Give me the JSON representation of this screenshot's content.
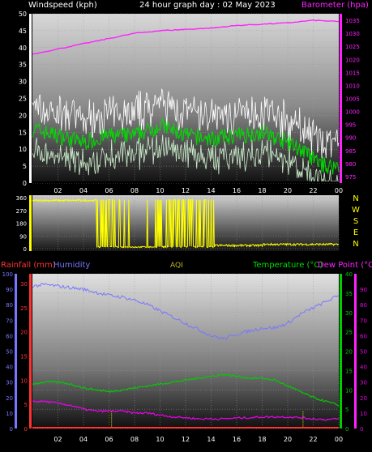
{
  "header": {
    "wind_title": "Windspeed (kph)",
    "graph_title": "24 hour graph day : 02 May 2023",
    "baro_title": "Barometer (hpa)"
  },
  "lower_header": {
    "rain_title": "Rainfall (mm)",
    "humidity_title": "Humidity",
    "aqi_title": "AQI",
    "temp_title": "Temperature (°C)",
    "dew_title": "Dew Point (°C"
  },
  "x_ticks": [
    "02",
    "04",
    "06",
    "08",
    "10",
    "12",
    "14",
    "16",
    "18",
    "20",
    "22",
    "00"
  ],
  "compass": [
    "N",
    "W",
    "S",
    "E",
    "N"
  ],
  "colors": {
    "background": "#000000",
    "wind_gust": "#ffffff",
    "wind_avg": "#00dd00",
    "wind_min": "#cceecc",
    "barometer": "#ff22ff",
    "direction": "#ffff00",
    "humidity": "#7777ff",
    "temperature": "#00cc00",
    "dewpoint": "#ee00ee",
    "rainfall": "#ff3333"
  },
  "chart_data": [
    {
      "type": "line",
      "name": "wind_and_barometer",
      "title": "24 hour graph day : 02 May 2023",
      "x_ticks": [
        "02",
        "04",
        "06",
        "08",
        "10",
        "12",
        "14",
        "16",
        "18",
        "20",
        "22",
        "00"
      ],
      "y_left": {
        "label": "Windspeed (kph)",
        "ticks": [
          0,
          5,
          10,
          15,
          20,
          25,
          30,
          35,
          40,
          45,
          50
        ],
        "range": [
          0,
          50
        ]
      },
      "y_right": {
        "label": "Barometer (hpa)",
        "ticks": [
          975,
          980,
          985,
          990,
          995,
          1000,
          1005,
          1010,
          1015,
          1020,
          1025,
          1030,
          1035
        ],
        "range": [
          972.5,
          1037.5
        ]
      },
      "series": [
        {
          "name": "Windspeed (kph)",
          "x": [
            0,
            2,
            4,
            6,
            8,
            10,
            12,
            14,
            16,
            18,
            20,
            21,
            22,
            23,
            24
          ],
          "values": [
            16,
            14,
            12,
            14,
            14,
            17,
            14,
            13,
            14,
            15,
            12,
            10,
            7,
            5,
            5
          ]
        },
        {
          "name": "Barometer (hpa)",
          "x": [
            0,
            2,
            4,
            6,
            8,
            10,
            12,
            14,
            16,
            18,
            20,
            22,
            24
          ],
          "values": [
            1022,
            1024,
            1026,
            1028,
            1030,
            1031,
            1031.5,
            1032,
            1033,
            1033.5,
            1034,
            1035,
            1034.5
          ]
        }
      ]
    },
    {
      "type": "scatter",
      "name": "wind_direction",
      "y_ticks": [
        0,
        90,
        180,
        270,
        360
      ],
      "y_range": [
        0,
        360
      ],
      "compass": [
        "N",
        "W",
        "S",
        "E",
        "N"
      ]
    },
    {
      "type": "line",
      "name": "temperature_humidity_rain",
      "x_ticks": [
        "02",
        "04",
        "06",
        "08",
        "10",
        "12",
        "14",
        "16",
        "18",
        "20",
        "22",
        "00"
      ],
      "y_left_outer": {
        "label": "Humidity",
        "ticks": [
          0,
          10,
          20,
          30,
          40,
          50,
          60,
          70,
          80,
          90,
          100
        ],
        "range": [
          0,
          100
        ]
      },
      "y_left_inner": {
        "label": "Rainfall (mm)",
        "ticks": [
          0,
          5,
          10,
          15,
          20,
          25,
          30
        ],
        "range": [
          0,
          30
        ]
      },
      "y_right_inner": {
        "label": "Temperature (°C)",
        "ticks": [
          0,
          5,
          10,
          15,
          20,
          25,
          30,
          35,
          40
        ],
        "range": [
          0,
          40
        ]
      },
      "y_right_outer": {
        "label": "Dew Point (°C",
        "ticks": [
          0,
          10,
          20,
          30,
          40,
          50,
          60,
          70,
          80,
          90
        ],
        "range": [
          0,
          100
        ]
      },
      "series": [
        {
          "name": "Humidity",
          "x": [
            0,
            1,
            2,
            3,
            4,
            5,
            6,
            7,
            8,
            9,
            10,
            11,
            12,
            13,
            14,
            15,
            16,
            17,
            18,
            19,
            20,
            21,
            22,
            23,
            24
          ],
          "values": [
            92,
            93,
            92,
            91,
            90,
            88,
            86,
            85,
            83,
            80,
            76,
            72,
            68,
            64,
            60,
            58,
            61,
            63,
            65,
            65,
            68,
            74,
            78,
            82,
            86
          ]
        },
        {
          "name": "Temperature (°C)",
          "x": [
            0,
            1,
            2,
            3,
            4,
            5,
            6,
            7,
            8,
            9,
            10,
            11,
            12,
            13,
            14,
            15,
            16,
            17,
            18,
            19,
            20,
            21,
            22,
            23,
            24
          ],
          "values": [
            11.5,
            12,
            12,
            11.5,
            10.5,
            10,
            9.5,
            10,
            10.5,
            11,
            11.5,
            12,
            12.5,
            13,
            13.5,
            14,
            13.5,
            13,
            13,
            12.5,
            11,
            9.5,
            8,
            7,
            6
          ]
        },
        {
          "name": "Dew Point (°C",
          "x": [
            0,
            1,
            2,
            3,
            4,
            5,
            6,
            7,
            8,
            9,
            10,
            11,
            12,
            13,
            14,
            15,
            16,
            17,
            18,
            19,
            20,
            21,
            22,
            23,
            24
          ],
          "values": [
            7,
            7,
            6.5,
            6,
            5,
            4.5,
            4.5,
            4.5,
            4,
            4,
            3.5,
            3,
            2.8,
            2.5,
            2.5,
            2.5,
            2.7,
            2.8,
            3,
            3,
            3,
            2.8,
            2.5,
            2.3,
            2.5
          ]
        },
        {
          "name": "Rainfall (mm)",
          "x": [
            0,
            24
          ],
          "values": [
            0,
            0
          ]
        }
      ]
    }
  ]
}
